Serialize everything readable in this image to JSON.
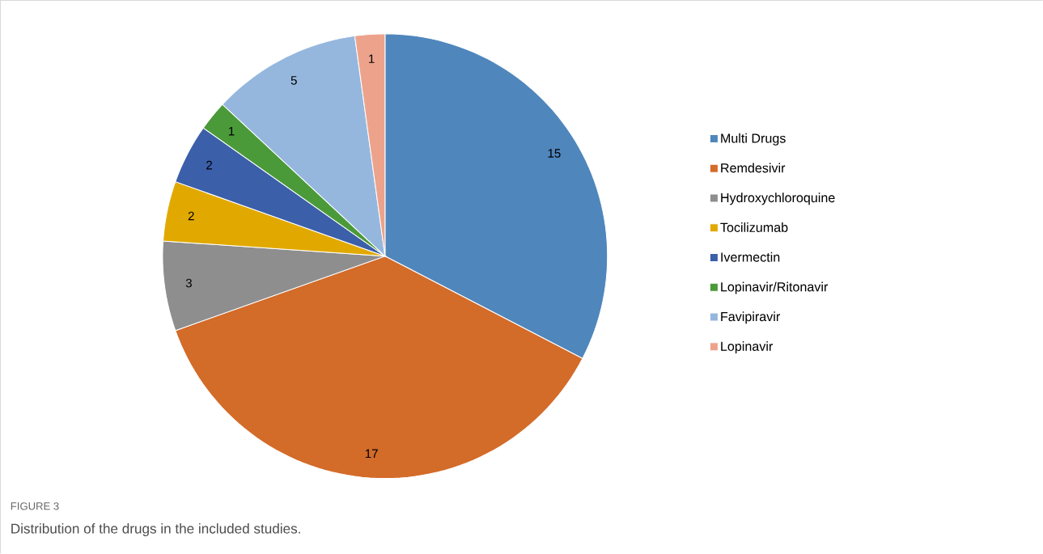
{
  "chart_data": {
    "type": "pie",
    "categories": [
      "Multi Drugs",
      "Remdesivir",
      "Hydroxychloroquine",
      "Tocilizumab",
      "Ivermectin",
      "Lopinavir/Ritonavir",
      "Favipiravir",
      "Lopinavir"
    ],
    "values": [
      15,
      17,
      3,
      2,
      2,
      1,
      5,
      1
    ],
    "colors": [
      "#4f86bc",
      "#d36b29",
      "#8e8e8e",
      "#e1a900",
      "#3b5fa9",
      "#4b9a3a",
      "#95b7de",
      "#eda38b"
    ],
    "data_labels": true,
    "legend": "right",
    "annotations": [
      "FIGURE 3",
      "Distribution of the drugs in the included studies."
    ]
  }
}
